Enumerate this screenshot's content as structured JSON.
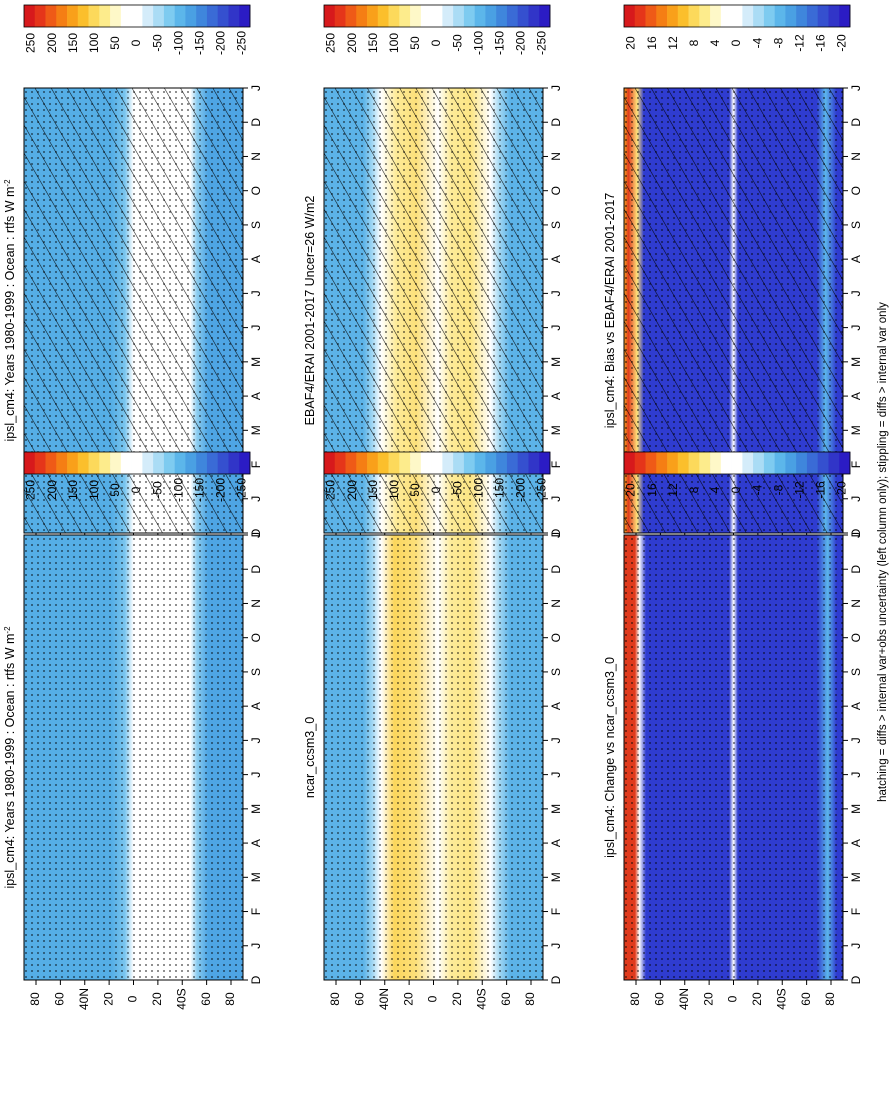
{
  "footnote": "hatching = diffs > internal var+obs uncertainty (left column only); stippling = diffs > internal var only",
  "colors": {
    "scale_main": [
      "#d7191c",
      "#e5351a",
      "#ef5a17",
      "#f57e14",
      "#f9a01a",
      "#fbbf2c",
      "#fcd95b",
      "#fdec8c",
      "#fef8c8",
      "#ffffff",
      "#ffffff",
      "#d4ecfa",
      "#aadcf5",
      "#7ecbf0",
      "#5cb6ea",
      "#4aa0e3",
      "#3f86dc",
      "#3a6bd6",
      "#3550cf",
      "#3135c8",
      "#2b1cc4"
    ],
    "scale_diff": [
      "#d7191c",
      "#e5351a",
      "#ef5a17",
      "#f57e14",
      "#f9a01a",
      "#fbbf2c",
      "#fcd95b",
      "#fdec8c",
      "#fef8c8",
      "#ffffff",
      "#ffffff",
      "#d4ecfa",
      "#aadcf5",
      "#7ecbf0",
      "#5cb6ea",
      "#4aa0e3",
      "#3f86dc",
      "#3a6bd6",
      "#3550cf",
      "#3135c8",
      "#2b1cc4"
    ]
  },
  "panels": [
    {
      "id": "p1",
      "title": "ipsl_cm4: Years 1980-1999 : Ocean : rtfs W m",
      "title_sup": "-2",
      "hatch": true,
      "stipple": true,
      "scale": "main",
      "bands": [
        [
          "#55aee6",
          0
        ],
        [
          "#55aee6",
          0.4
        ],
        [
          "#79c5ee",
          0.46
        ],
        [
          "#ffffff",
          0.5
        ],
        [
          "#ffffff",
          0.76
        ],
        [
          "#8ccdf0",
          0.79
        ],
        [
          "#4ea5e4",
          0.84
        ],
        [
          "#4ea5e4",
          1
        ]
      ]
    },
    {
      "id": "p2",
      "title": "ipsl_cm4: Years 1980-1999 : Ocean : rtfs W m",
      "title_sup": "-2",
      "hatch": false,
      "stipple": true,
      "scale": "main",
      "bands": [
        [
          "#55aee6",
          0
        ],
        [
          "#55aee6",
          0.4
        ],
        [
          "#79c5ee",
          0.46
        ],
        [
          "#ffffff",
          0.5
        ],
        [
          "#ffffff",
          0.76
        ],
        [
          "#8ccdf0",
          0.79
        ],
        [
          "#4ea5e4",
          0.84
        ],
        [
          "#4ea5e4",
          1
        ]
      ]
    },
    {
      "id": "p3",
      "title": "EBAF4/ERAI 2001-2017 Uncer=26 W/m2",
      "title_sup": "",
      "hatch": true,
      "stipple": true,
      "scale": "main",
      "bands": [
        [
          "#5cb3e8",
          0
        ],
        [
          "#5cb3e8",
          0.18
        ],
        [
          "#9fd6f3",
          0.22
        ],
        [
          "#ffffff",
          0.26
        ],
        [
          "#fdeb98",
          0.33
        ],
        [
          "#fce07a",
          0.42
        ],
        [
          "#ffffff",
          0.52
        ],
        [
          "#fdeb98",
          0.58
        ],
        [
          "#fce584",
          0.67
        ],
        [
          "#ffffff",
          0.76
        ],
        [
          "#a4d8f3",
          0.8
        ],
        [
          "#5cb3e8",
          0.85
        ],
        [
          "#5cb3e8",
          1
        ]
      ]
    },
    {
      "id": "p4",
      "title": "ncar_ccsm3_0",
      "title_sup": "",
      "hatch": false,
      "stipple": true,
      "scale": "main",
      "bands": [
        [
          "#5cb3e8",
          0
        ],
        [
          "#5cb3e8",
          0.18
        ],
        [
          "#9fd6f3",
          0.22
        ],
        [
          "#ffffff",
          0.26
        ],
        [
          "#fbd65c",
          0.32
        ],
        [
          "#fce07a",
          0.42
        ],
        [
          "#ffffff",
          0.52
        ],
        [
          "#fdeb98",
          0.58
        ],
        [
          "#fce584",
          0.67
        ],
        [
          "#ffffff",
          0.76
        ],
        [
          "#a4d8f3",
          0.8
        ],
        [
          "#5cb3e8",
          0.85
        ],
        [
          "#5cb3e8",
          1
        ]
      ]
    },
    {
      "id": "p5",
      "title": "ipsl_cm4: Bias vs EBAF4/ERAI 2001-2017",
      "title_sup": "",
      "hatch": true,
      "stipple": true,
      "scale": "diff",
      "bands": [
        [
          "#f5a623",
          0
        ],
        [
          "#e03a1c",
          0.02
        ],
        [
          "#ffe27a",
          0.06
        ],
        [
          "#2f3cd0",
          0.09
        ],
        [
          "#2f3cd0",
          0.48
        ],
        [
          "#ffffff",
          0.5
        ],
        [
          "#2f3cd0",
          0.52
        ],
        [
          "#2f3cd0",
          0.88
        ],
        [
          "#5cb6ea",
          0.92
        ],
        [
          "#2f3cd0",
          0.97
        ],
        [
          "#2f3cd0",
          1
        ]
      ]
    },
    {
      "id": "p6",
      "title": "ipsl_cm4: Change vs ncar_ccsm3_0",
      "title_sup": "",
      "hatch": false,
      "stipple": true,
      "scale": "diff",
      "bands": [
        [
          "#e03a1c",
          0
        ],
        [
          "#e03a1c",
          0.05
        ],
        [
          "#ffffff",
          0.07
        ],
        [
          "#2f3cd0",
          0.1
        ],
        [
          "#2f3cd0",
          0.48
        ],
        [
          "#ffffff",
          0.5
        ],
        [
          "#2f3cd0",
          0.52
        ],
        [
          "#2f3cd0",
          0.88
        ],
        [
          "#5cb6ea",
          0.93
        ],
        [
          "#2f3cd0",
          0.97
        ],
        [
          "#2f3cd0",
          1
        ]
      ]
    }
  ],
  "chart_data": [
    {
      "type": "heatmap",
      "title": "ipsl_cm4: Years 1980-1999 : Ocean : rtfs W m-2",
      "x_ticks": [
        "D",
        "J",
        "F",
        "M",
        "A",
        "M",
        "J",
        "J",
        "A",
        "S",
        "O",
        "N",
        "D",
        "J"
      ],
      "y_ticks": [
        "80",
        "60",
        "40",
        "20",
        "0",
        "20",
        "40",
        "60",
        "80"
      ],
      "y_tick_letters": {
        "N": "40",
        "S": "40"
      },
      "colorbar": [
        "250",
        "200",
        "150",
        "100",
        "50",
        "0",
        "-50",
        "-100",
        "-150",
        "-200",
        "-250"
      ],
      "range": [
        -250,
        250
      ]
    },
    {
      "type": "heatmap",
      "title": "ipsl_cm4: Years 1980-1999 : Ocean : rtfs W m-2",
      "x_ticks": [
        "D",
        "J",
        "F",
        "M",
        "A",
        "M",
        "J",
        "J",
        "A",
        "S",
        "O",
        "N",
        "D",
        "J"
      ],
      "y_ticks": [
        "80",
        "60",
        "40",
        "20",
        "0",
        "20",
        "40",
        "60",
        "80"
      ],
      "colorbar": [
        "250",
        "200",
        "150",
        "100",
        "50",
        "0",
        "-50",
        "-100",
        "-150",
        "-200",
        "-250"
      ],
      "range": [
        -250,
        250
      ]
    },
    {
      "type": "heatmap",
      "title": "EBAF4/ERAI 2001-2017 Uncer=26 W/m2",
      "x_ticks": [
        "D",
        "J",
        "F",
        "M",
        "A",
        "M",
        "J",
        "J",
        "A",
        "S",
        "O",
        "N",
        "D",
        "J"
      ],
      "y_ticks": [
        "80",
        "60",
        "40",
        "20",
        "0",
        "20",
        "40",
        "60",
        "80"
      ],
      "colorbar": [
        "250",
        "200",
        "150",
        "100",
        "50",
        "0",
        "-50",
        "-100",
        "-150",
        "-200",
        "-250"
      ],
      "range": [
        -250,
        250
      ]
    },
    {
      "type": "heatmap",
      "title": "ncar_ccsm3_0",
      "x_ticks": [
        "D",
        "J",
        "F",
        "M",
        "A",
        "M",
        "J",
        "J",
        "A",
        "S",
        "O",
        "N",
        "D",
        "J"
      ],
      "y_ticks": [
        "80",
        "60",
        "40",
        "20",
        "0",
        "20",
        "40",
        "60",
        "80"
      ],
      "colorbar": [
        "250",
        "200",
        "150",
        "100",
        "50",
        "0",
        "-50",
        "-100",
        "-150",
        "-200",
        "-250"
      ],
      "range": [
        -250,
        250
      ]
    },
    {
      "type": "heatmap",
      "title": "ipsl_cm4: Bias vs EBAF4/ERAI 2001-2017",
      "x_ticks": [
        "D",
        "J",
        "F",
        "M",
        "A",
        "M",
        "J",
        "J",
        "A",
        "S",
        "O",
        "N",
        "D",
        "J"
      ],
      "y_ticks": [
        "80",
        "60",
        "40",
        "20",
        "0",
        "20",
        "40",
        "60",
        "80"
      ],
      "colorbar": [
        "20",
        "16",
        "12",
        "8",
        "4",
        "0",
        "-4",
        "-8",
        "-12",
        "-16",
        "-20"
      ],
      "range": [
        -20,
        20
      ]
    },
    {
      "type": "heatmap",
      "title": "ipsl_cm4: Change vs ncar_ccsm3_0",
      "x_ticks": [
        "D",
        "J",
        "F",
        "M",
        "A",
        "M",
        "J",
        "J",
        "A",
        "S",
        "O",
        "N",
        "D",
        "J"
      ],
      "y_ticks": [
        "80",
        "60",
        "40",
        "20",
        "0",
        "20",
        "40",
        "60",
        "80"
      ],
      "colorbar": [
        "20",
        "16",
        "12",
        "8",
        "4",
        "0",
        "-4",
        "-8",
        "-12",
        "-16",
        "-20"
      ],
      "range": [
        -20,
        20
      ]
    }
  ]
}
